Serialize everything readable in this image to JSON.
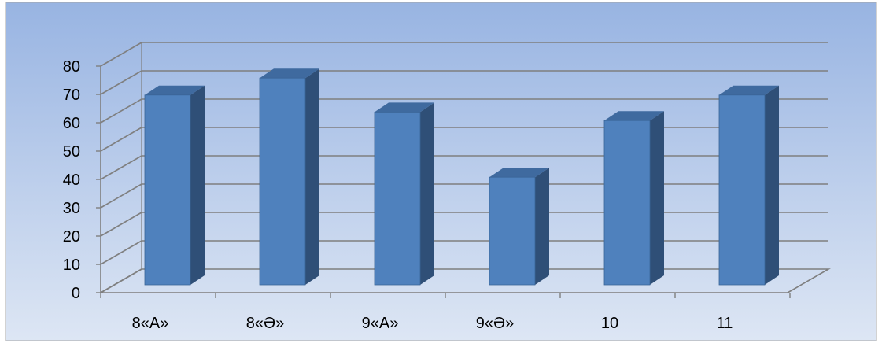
{
  "chart_data": {
    "type": "bar",
    "style": "3d-column",
    "title": "",
    "xlabel": "",
    "ylabel": "",
    "categories": [
      "8«А»",
      "8«Ә»",
      "9«А»",
      "9«Ә»",
      "10",
      "11"
    ],
    "values": [
      67,
      73,
      61,
      38,
      58,
      67
    ],
    "ylim": [
      0,
      80
    ],
    "yticks": [
      0,
      10,
      20,
      30,
      40,
      50,
      60,
      70,
      80
    ],
    "grid": true,
    "legend": "none",
    "colors": {
      "bar_front": "#4f81bd",
      "bar_side": "#2f4f77",
      "bar_top": "#3f6a9f",
      "background_top": "#98b4e2",
      "background_bottom": "#dde6f4",
      "gridline": "#7f7f7f"
    }
  }
}
